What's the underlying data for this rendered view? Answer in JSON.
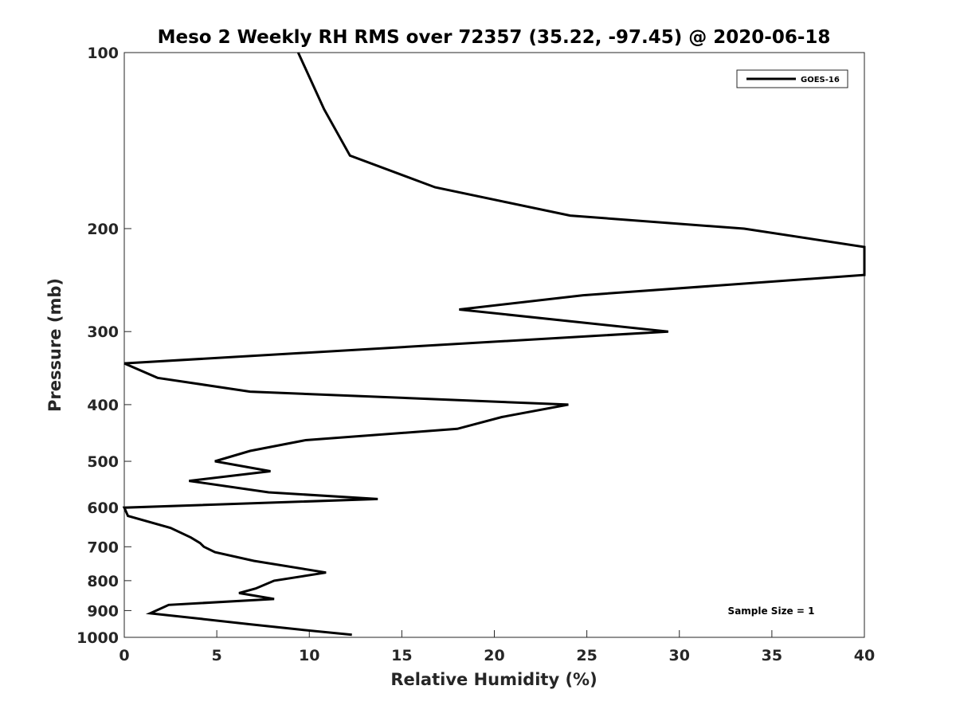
{
  "chart_data": {
    "type": "line",
    "title": "Meso 2 Weekly RH RMS over 72357 (35.22, -97.45) @ 2020-06-18",
    "xlabel": "Relative Humidity (%)",
    "ylabel": "Pressure (mb)",
    "xlim": [
      0,
      40
    ],
    "ylim": [
      100,
      1000
    ],
    "yscale": "log",
    "y_reversed": true,
    "xticks": [
      0,
      5,
      10,
      15,
      20,
      25,
      30,
      35,
      40
    ],
    "yticks": [
      100,
      200,
      300,
      400,
      500,
      600,
      700,
      800,
      900,
      1000
    ],
    "legend": {
      "placement": "top-right",
      "entries": [
        "GOES-16"
      ]
    },
    "annotation": "Sample Size = 1",
    "series": [
      {
        "name": "GOES-16",
        "color": "#000000",
        "points": [
          [
            9.4,
            100
          ],
          [
            10.8,
            125
          ],
          [
            12.2,
            150
          ],
          [
            16.8,
            170
          ],
          [
            24.1,
            190
          ],
          [
            33.5,
            200
          ],
          [
            40.0,
            215
          ],
          [
            40.0,
            240
          ],
          [
            24.8,
            260
          ],
          [
            18.1,
            275
          ],
          [
            29.4,
            300
          ],
          [
            0.0,
            340
          ],
          [
            1.8,
            360
          ],
          [
            6.8,
            380
          ],
          [
            24.0,
            400
          ],
          [
            20.4,
            420
          ],
          [
            18.0,
            440
          ],
          [
            9.8,
            460
          ],
          [
            6.8,
            480
          ],
          [
            4.9,
            500
          ],
          [
            7.9,
            520
          ],
          [
            3.5,
            540
          ],
          [
            7.8,
            565
          ],
          [
            13.7,
            580
          ],
          [
            0.0,
            600
          ],
          [
            0.2,
            620
          ],
          [
            2.5,
            650
          ],
          [
            3.6,
            675
          ],
          [
            4.1,
            690
          ],
          [
            4.3,
            700
          ],
          [
            4.9,
            715
          ],
          [
            7.0,
            740
          ],
          [
            10.9,
            775
          ],
          [
            8.1,
            800
          ],
          [
            7.1,
            825
          ],
          [
            6.2,
            840
          ],
          [
            8.1,
            860
          ],
          [
            2.4,
            880
          ],
          [
            1.4,
            910
          ],
          [
            4.2,
            930
          ],
          [
            6.8,
            950
          ],
          [
            9.5,
            970
          ],
          [
            12.3,
            990
          ]
        ]
      }
    ]
  }
}
